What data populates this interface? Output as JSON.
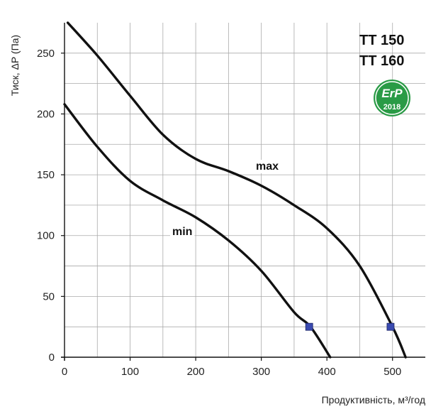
{
  "chart_data": {
    "type": "line",
    "title": "",
    "models": [
      "TT 150",
      "TT 160"
    ],
    "badge": {
      "line1": "ErP",
      "line2": "2018"
    },
    "xlabel": "Продуктивність, м³/год",
    "ylabel": "Тиск, ΔP (Па)",
    "xlim": [
      0,
      550
    ],
    "ylim": [
      0,
      275
    ],
    "x_ticks": [
      0,
      100,
      200,
      300,
      400,
      500
    ],
    "y_ticks": [
      0,
      50,
      100,
      150,
      200,
      250
    ],
    "x_grid_step": 50,
    "y_grid_step": 25,
    "grid": true,
    "series": [
      {
        "name": "max",
        "x": [
          5,
          50,
          100,
          150,
          200,
          250,
          300,
          350,
          400,
          450,
          500,
          520
        ],
        "y": [
          275,
          248,
          215,
          183,
          163,
          153,
          141,
          125,
          106,
          75,
          25,
          0
        ],
        "marker": {
          "x": 497,
          "y": 25
        }
      },
      {
        "name": "min",
        "x": [
          0,
          50,
          100,
          150,
          200,
          250,
          300,
          350,
          375,
          405
        ],
        "y": [
          208,
          173,
          145,
          129,
          115,
          96,
          71,
          37,
          25,
          0
        ],
        "marker": {
          "x": 373,
          "y": 25
        }
      }
    ],
    "colors": {
      "curve": "#111111",
      "marker": "#3a4ab0",
      "grid": "#aaaaaa",
      "badge": "#2a9b46"
    }
  }
}
